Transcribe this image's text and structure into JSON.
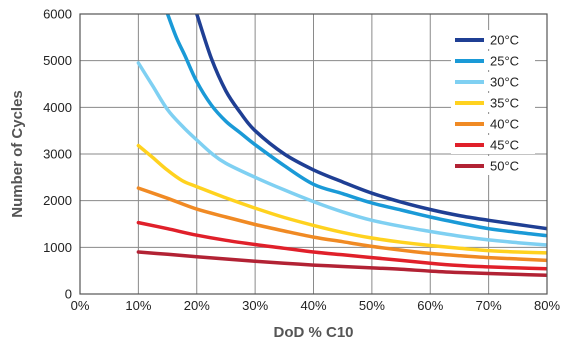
{
  "chart_data": {
    "type": "line",
    "title": "",
    "xlabel": "DoD % C10",
    "ylabel": "Number of Cycles",
    "xlim": [
      0,
      80
    ],
    "ylim": [
      0,
      6000
    ],
    "xticks": [
      0,
      10,
      20,
      30,
      40,
      50,
      60,
      70,
      80
    ],
    "xtick_labels": [
      "0%",
      "10%",
      "20%",
      "30%",
      "40%",
      "50%",
      "60%",
      "70%",
      "80%"
    ],
    "yticks": [
      0,
      1000,
      2000,
      3000,
      4000,
      5000,
      6000
    ],
    "ytick_labels": [
      "0",
      "1000",
      "2000",
      "3000",
      "4000",
      "5000",
      "6000"
    ],
    "grid": true,
    "legend_position": "top-right",
    "series": [
      {
        "name": "20°C",
        "color": "#1f3f94",
        "x": [
          20,
          22.5,
          25,
          27.5,
          30,
          35,
          40,
          45,
          50,
          55,
          60,
          65,
          70,
          75,
          80
        ],
        "y": [
          6000,
          5050,
          4350,
          3880,
          3500,
          3000,
          2660,
          2400,
          2160,
          1970,
          1810,
          1680,
          1580,
          1490,
          1400
        ]
      },
      {
        "name": "25°C",
        "color": "#1a9ad7",
        "x": [
          15,
          16.5,
          18,
          20,
          22.5,
          25,
          27.5,
          30,
          35,
          40,
          45,
          50,
          55,
          60,
          65,
          70,
          75,
          80
        ],
        "y": [
          6000,
          5500,
          5100,
          4550,
          4050,
          3700,
          3450,
          3200,
          2750,
          2350,
          2150,
          1950,
          1800,
          1650,
          1520,
          1400,
          1320,
          1250
        ]
      },
      {
        "name": "30°C",
        "color": "#7fd0f2",
        "x": [
          10,
          12.5,
          15,
          17.5,
          20,
          22.5,
          25,
          30,
          35,
          40,
          45,
          50,
          55,
          60,
          65,
          70,
          75,
          80
        ],
        "y": [
          4950,
          4450,
          3950,
          3600,
          3300,
          3020,
          2800,
          2500,
          2230,
          1980,
          1760,
          1580,
          1450,
          1340,
          1240,
          1160,
          1100,
          1050
        ]
      },
      {
        "name": "35°C",
        "color": "#ffd21f",
        "x": [
          10,
          12.5,
          15,
          17.5,
          20,
          25,
          30,
          35,
          40,
          45,
          50,
          55,
          60,
          65,
          70,
          75,
          80
        ],
        "y": [
          3180,
          2920,
          2650,
          2430,
          2300,
          2060,
          1840,
          1640,
          1470,
          1320,
          1200,
          1110,
          1040,
          980,
          930,
          900,
          880
        ]
      },
      {
        "name": "40°C",
        "color": "#f08a24",
        "x": [
          10,
          15,
          20,
          25,
          30,
          35,
          40,
          45,
          50,
          55,
          60,
          65,
          70,
          75,
          80
        ],
        "y": [
          2270,
          2050,
          1820,
          1650,
          1490,
          1350,
          1220,
          1120,
          1020,
          940,
          870,
          820,
          780,
          750,
          720
        ]
      },
      {
        "name": "45°C",
        "color": "#e0202a",
        "x": [
          10,
          15,
          20,
          25,
          30,
          35,
          40,
          45,
          50,
          55,
          60,
          65,
          70,
          75,
          80
        ],
        "y": [
          1530,
          1400,
          1260,
          1150,
          1060,
          980,
          900,
          840,
          780,
          720,
          660,
          610,
          580,
          560,
          540
        ]
      },
      {
        "name": "50°C",
        "color": "#b22234",
        "x": [
          10,
          15,
          20,
          25,
          30,
          35,
          40,
          45,
          50,
          55,
          60,
          65,
          70,
          75,
          80
        ],
        "y": [
          900,
          850,
          800,
          750,
          700,
          660,
          620,
          590,
          560,
          530,
          490,
          460,
          440,
          420,
          400
        ]
      }
    ]
  }
}
